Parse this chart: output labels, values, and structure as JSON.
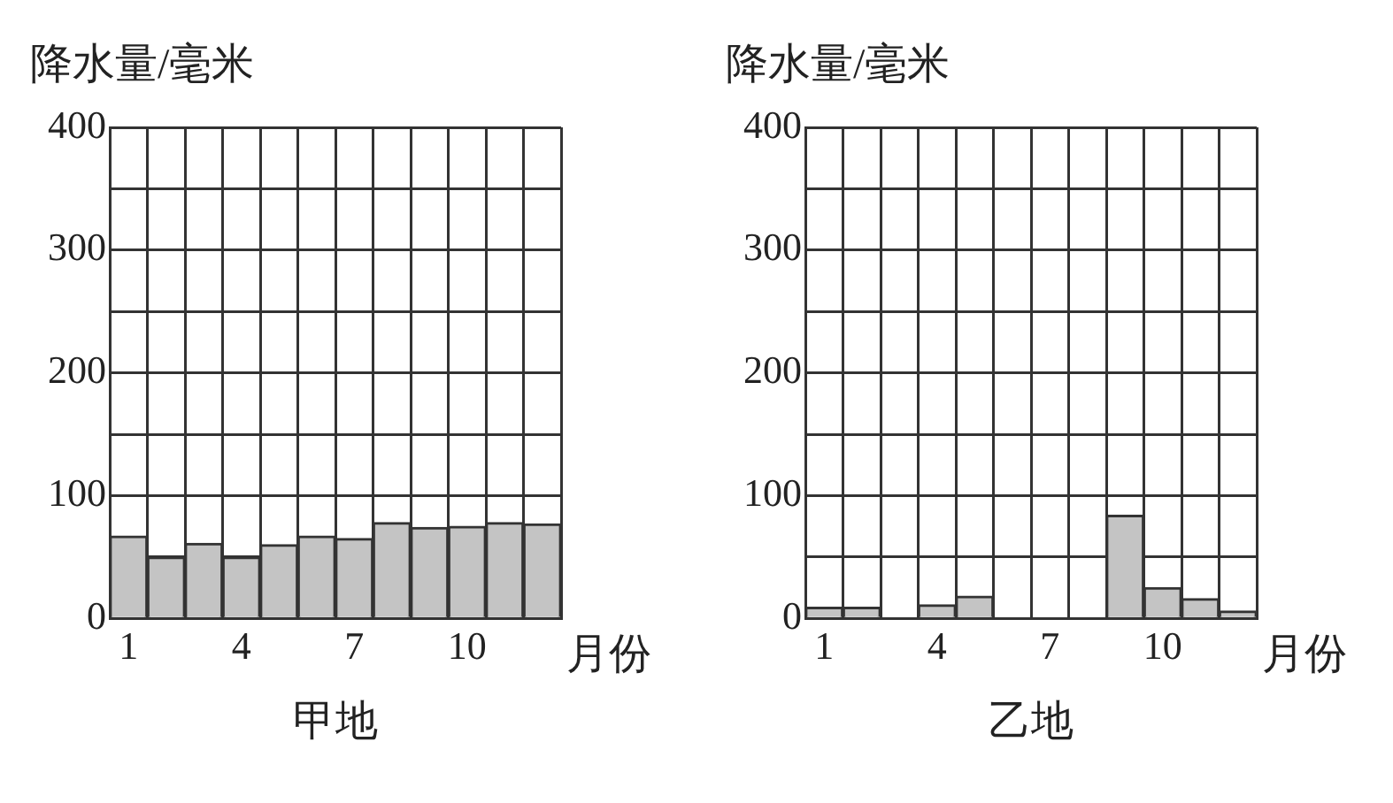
{
  "chart_data": [
    {
      "type": "bar",
      "title": "甲地",
      "ylabel": "降水量/毫米",
      "xlabel": "月份",
      "categories": [
        "1",
        null,
        null,
        "4",
        null,
        null,
        "7",
        null,
        null,
        "10",
        null,
        null
      ],
      "color": "#c4c4c4",
      "values": [
        67,
        50,
        61,
        50,
        60,
        67,
        65,
        78,
        74,
        75,
        78,
        77
      ],
      "ylim": [
        0,
        400
      ],
      "yticks": [
        0,
        {
          "value": 50,
          "label": null
        },
        100,
        {
          "value": 150,
          "label": null
        },
        200,
        {
          "value": 250,
          "label": null
        },
        300,
        {
          "value": 350,
          "label": null
        },
        400
      ],
      "grid": true,
      "legend": false
    },
    {
      "type": "bar",
      "title": "乙地",
      "ylabel": "降水量/毫米",
      "xlabel": "月份",
      "categories": [
        "1",
        null,
        null,
        "4",
        null,
        null,
        "7",
        null,
        null,
        "10",
        null,
        null
      ],
      "color": "#c4c4c4",
      "values": [
        9,
        9,
        0,
        11,
        18,
        0,
        0,
        0,
        84,
        25,
        16,
        6
      ],
      "ylim": [
        0,
        400
      ],
      "yticks": [
        0,
        {
          "value": 50,
          "label": null
        },
        100,
        {
          "value": 150,
          "label": null
        },
        200,
        {
          "value": 250,
          "label": null
        },
        300,
        {
          "value": 350,
          "label": null
        },
        400
      ],
      "grid": true,
      "legend": false
    }
  ]
}
